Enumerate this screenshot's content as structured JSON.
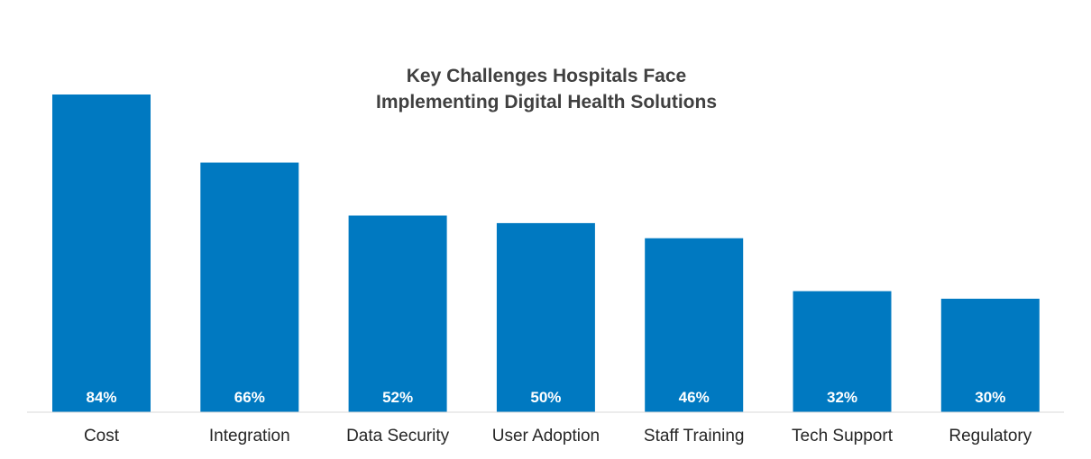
{
  "chart_data": {
    "type": "bar",
    "title_lines": [
      "Key Challenges Hospitals Face",
      "Implementing Digital Health Solutions"
    ],
    "categories": [
      "Cost",
      "Integration",
      "Data Security",
      "User Adoption",
      "Staff Training",
      "Tech Support",
      "Regulatory"
    ],
    "values": [
      84,
      66,
      52,
      50,
      46,
      32,
      30
    ],
    "value_labels": [
      "84%",
      "66%",
      "52%",
      "50%",
      "46%",
      "32%",
      "30%"
    ],
    "ylim": [
      0,
      100
    ],
    "grid": false,
    "legend": "none",
    "colors": {
      "bar": "#0079C1",
      "baseline": "#D9D9D9",
      "title": "#404040",
      "category_text": "#262626",
      "value_text": "#FFFFFF"
    }
  }
}
